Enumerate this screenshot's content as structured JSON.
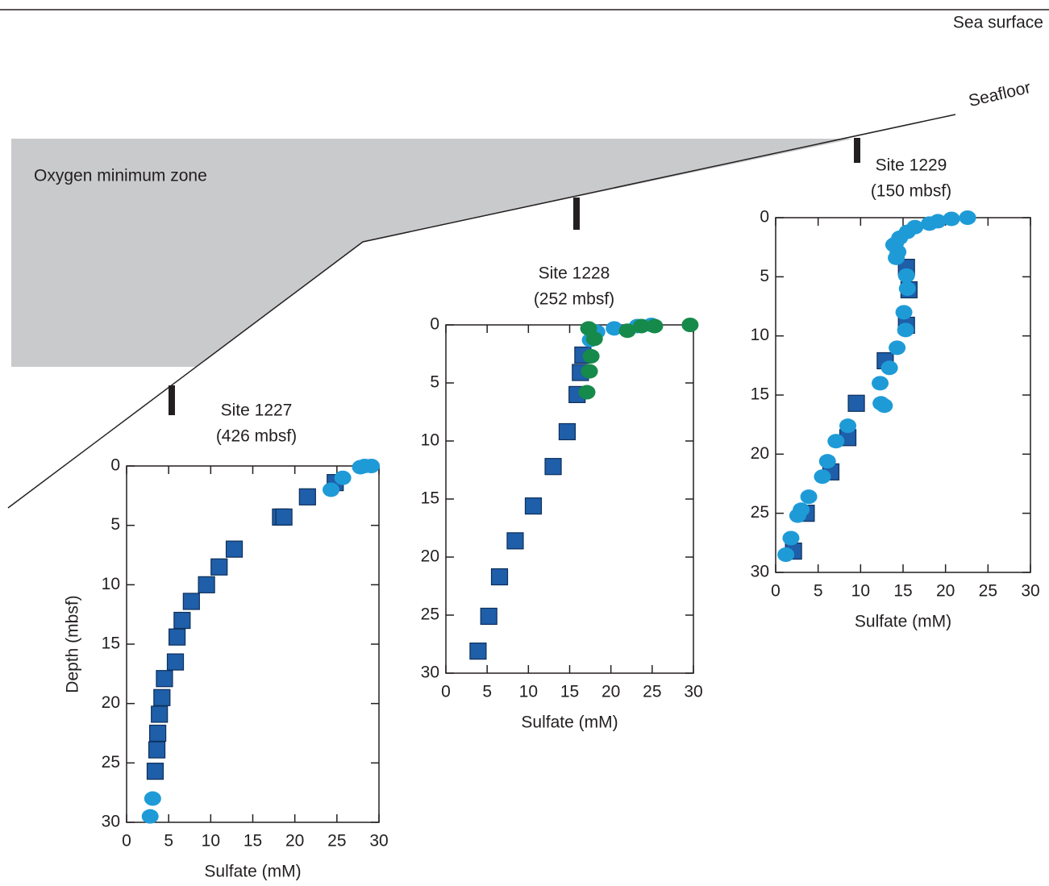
{
  "diagram": {
    "sea_surface": "Sea surface",
    "seafloor": "Seafloor",
    "zone": "Oxygen minimum zone"
  },
  "chart_data": [
    {
      "type": "scatter",
      "title": "Site 1227",
      "subtitle": "(426 mbsf)",
      "xlabel": "Sulfate (mM)",
      "ylabel": "Depth (mbsf)",
      "xlim": [
        0,
        30
      ],
      "xticks": [
        0,
        5,
        10,
        15,
        20,
        25,
        30
      ],
      "ylim": [
        30,
        0
      ],
      "yticks": [
        0,
        5,
        10,
        15,
        20,
        25,
        30
      ],
      "series": [
        {
          "color": "#1f5ea8",
          "marker": "square",
          "x": [
            24.8,
            21.5,
            18.3,
            18.7,
            12.8,
            11.0,
            9.5,
            7.7,
            6.6,
            6.0,
            5.8,
            4.5,
            4.2,
            3.9,
            3.7,
            3.6,
            3.4
          ],
          "values": [
            1.4,
            2.6,
            4.3,
            4.3,
            7.0,
            8.5,
            10.0,
            11.4,
            13.0,
            14.4,
            16.5,
            17.9,
            19.5,
            20.9,
            22.5,
            23.9,
            25.7
          ]
        },
        {
          "color": "#1e9bd7",
          "marker": "circle",
          "x": [
            29.1,
            28.3,
            27.8,
            25.7,
            24.3,
            3.1,
            2.8
          ],
          "values": [
            0,
            0,
            0.1,
            1.0,
            2.0,
            28.0,
            29.5
          ]
        }
      ]
    },
    {
      "type": "scatter",
      "title": "Site 1228",
      "subtitle": "(252 mbsf)",
      "xlabel": "Sulfate (mM)",
      "xlim": [
        0,
        30
      ],
      "xticks": [
        0,
        5,
        10,
        15,
        20,
        25,
        30
      ],
      "ylim": [
        30,
        0
      ],
      "yticks": [
        0,
        5,
        10,
        15,
        20,
        25,
        30
      ],
      "series": [
        {
          "color": "#1f5ea8",
          "marker": "square",
          "x": [
            16.6,
            16.3,
            15.9,
            14.7,
            13.0,
            10.6,
            8.4,
            6.5,
            5.2,
            3.9
          ],
          "values": [
            2.6,
            4.1,
            6.0,
            9.2,
            12.2,
            15.6,
            18.6,
            21.7,
            25.1,
            28.1
          ]
        },
        {
          "color": "#1e9bd7",
          "marker": "circle",
          "x": [
            24.9,
            23.2,
            20.4,
            18.3,
            17.5
          ],
          "values": [
            0,
            0.1,
            0.3,
            0.6,
            1.3
          ]
        },
        {
          "color": "#168a4a",
          "marker": "circle",
          "x": [
            29.6,
            25.3,
            23.7,
            22.0,
            17.3,
            18.0,
            17.6,
            17.4,
            17.1
          ],
          "values": [
            0,
            0.1,
            0.1,
            0.5,
            0.3,
            1.2,
            2.7,
            4.0,
            5.8
          ]
        }
      ]
    },
    {
      "type": "scatter",
      "title": "Site 1229",
      "subtitle": "(150 mbsf)",
      "xlabel": "Sulfate (mM)",
      "xlim": [
        0,
        30
      ],
      "xticks": [
        0,
        5,
        10,
        15,
        20,
        25,
        30
      ],
      "ylim": [
        30,
        0
      ],
      "yticks": [
        0,
        5,
        10,
        15,
        20,
        25,
        30
      ],
      "series": [
        {
          "color": "#1f5ea8",
          "marker": "square",
          "x": [
            15.4,
            15.7,
            15.4,
            12.9,
            9.5,
            8.5,
            6.5,
            3.6,
            2.1
          ],
          "values": [
            4.2,
            6.1,
            9.1,
            12.1,
            15.7,
            18.6,
            21.5,
            25.0,
            28.2
          ]
        },
        {
          "color": "#1e9bd7",
          "marker": "circle",
          "x": [
            22.6,
            20.7,
            19.1,
            18.1,
            16.4,
            15.5,
            14.6,
            14.1,
            13.9,
            14.4,
            14.2,
            15.4,
            15.5,
            15.1,
            15.3,
            14.3,
            13.4,
            12.3,
            12.4,
            12.8,
            8.5,
            7.1,
            6.1,
            5.5,
            3.9,
            3.0,
            2.6,
            1.8,
            1.2
          ],
          "values": [
            0,
            0.1,
            0.3,
            0.5,
            0.8,
            1.2,
            1.7,
            2.2,
            2.3,
            2.9,
            3.4,
            4.9,
            6.0,
            8.0,
            9.5,
            11.0,
            12.7,
            14.0,
            15.7,
            15.9,
            17.6,
            18.9,
            20.6,
            21.9,
            23.6,
            24.7,
            25.2,
            27.1,
            28.5
          ]
        }
      ]
    }
  ]
}
